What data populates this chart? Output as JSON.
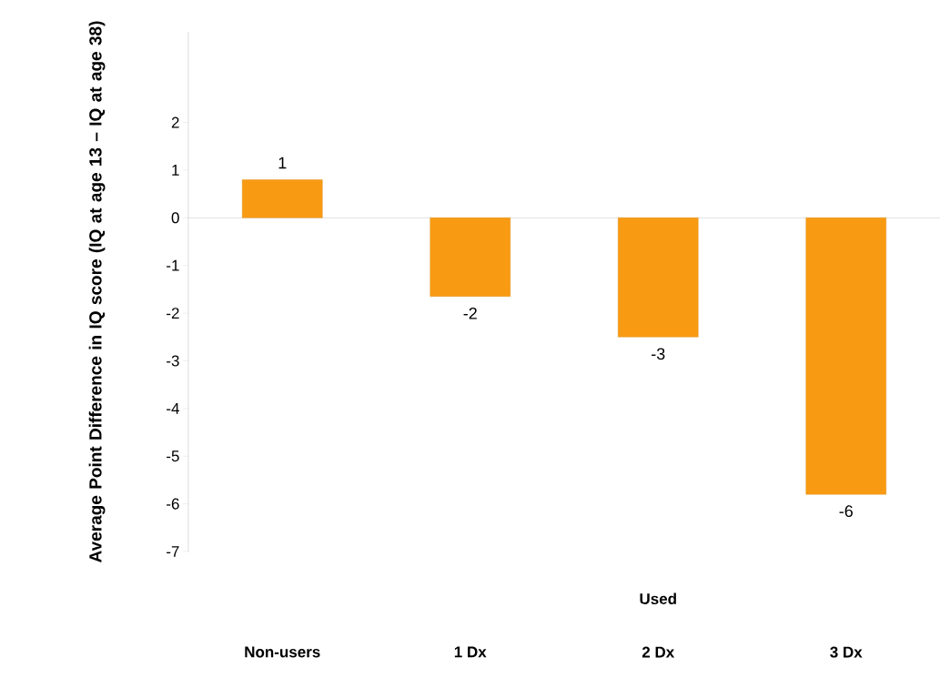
{
  "chart_data": {
    "type": "bar",
    "ylabel": "Average Point Difference in IQ score (IQ at age 13 – IQ at age 38)",
    "categories": [
      "Non-users",
      "1 Dx",
      "2 Dx",
      "3 Dx"
    ],
    "values": [
      0.8,
      -1.65,
      -2.5,
      -5.8
    ],
    "value_labels": [
      "1",
      "-2",
      "-3",
      "-6"
    ],
    "color": "#f99b12",
    "ylim": [
      -7,
      3.9
    ],
    "yticks": [
      -7,
      -6,
      -5,
      -4,
      -3,
      -2,
      -1,
      0,
      1,
      2
    ],
    "annotations": [
      "Used"
    ]
  }
}
